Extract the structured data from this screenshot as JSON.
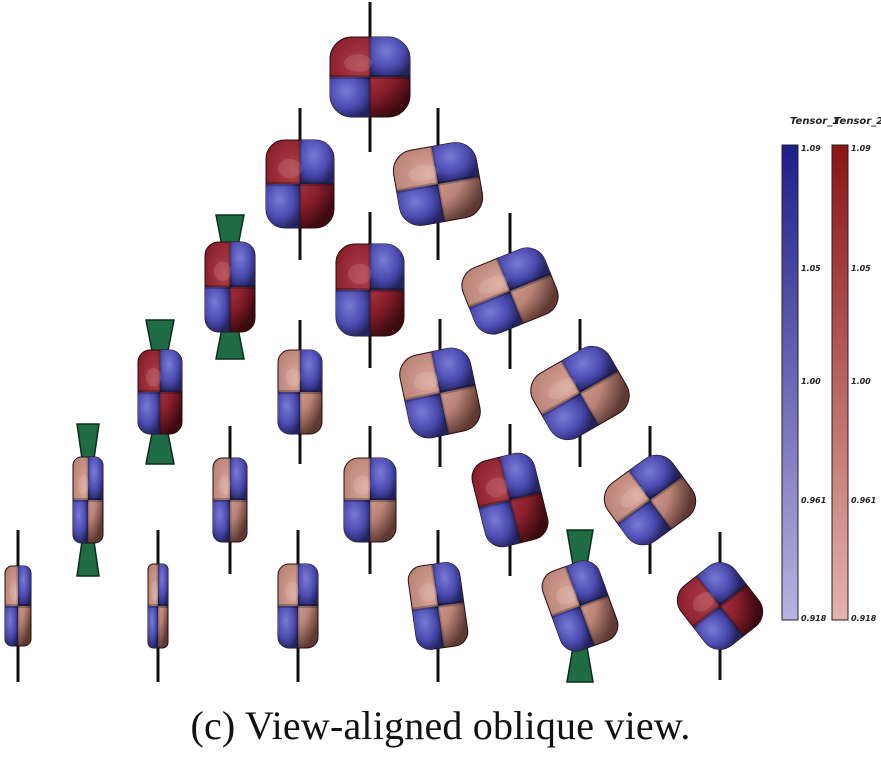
{
  "caption": "(c) View-aligned oblique view.",
  "colorbars": [
    {
      "title": "Tensor_1",
      "colors": {
        "high": "#1e1e8c",
        "low": "#b7b4e0"
      },
      "ticks": [
        "1.09",
        "1.05",
        "1.00",
        "0.961",
        "0.918"
      ]
    },
    {
      "title": "Tensor_2",
      "colors": {
        "high": "#8c1414",
        "low": "#e6b4ad"
      },
      "ticks": [
        "1.09",
        "1.05",
        "1.00",
        "0.961",
        "0.918"
      ]
    }
  ],
  "glyph_colors": {
    "blue": "#4b4bb0",
    "red": "#8a1f2c",
    "tan": "#b98377",
    "green": "#1e6b44"
  },
  "glyph_grid": {
    "rows": 6,
    "description_of_counts": [
      1,
      2,
      3,
      4,
      5,
      6
    ]
  }
}
